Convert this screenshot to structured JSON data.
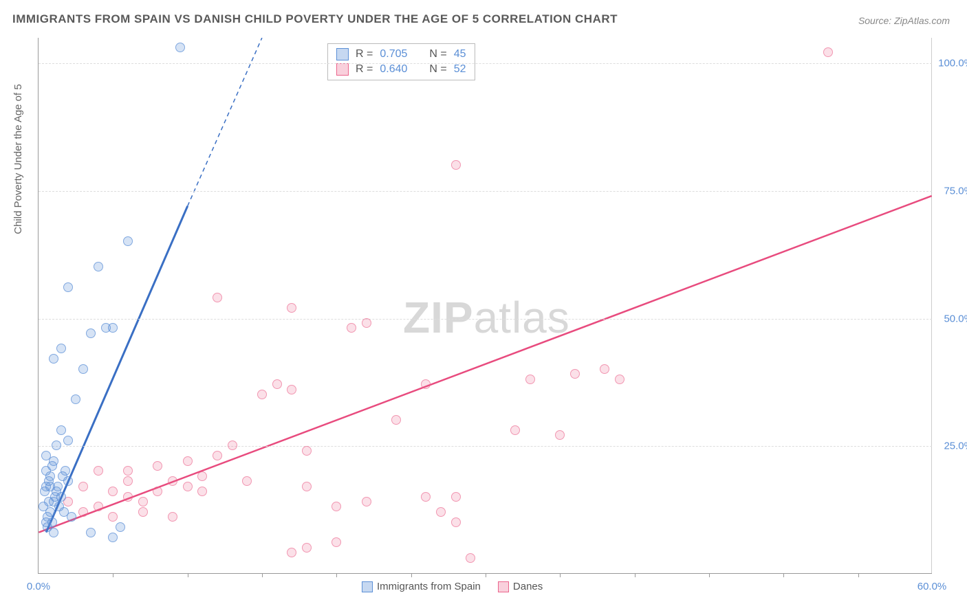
{
  "title": "IMMIGRANTS FROM SPAIN VS DANISH CHILD POVERTY UNDER THE AGE OF 5 CORRELATION CHART",
  "source_label": "Source: ",
  "source_value": "ZipAtlas.com",
  "axis": {
    "y_title": "Child Poverty Under the Age of 5",
    "x_min": 0,
    "x_max": 60,
    "y_min": 0,
    "y_max": 105,
    "y_ticks": [
      25,
      50,
      75,
      100
    ],
    "y_tick_labels": [
      "25.0%",
      "50.0%",
      "75.0%",
      "100.0%"
    ],
    "x_label_left": "0.0%",
    "x_label_right": "60.0%",
    "x_minor_ticks": [
      5,
      10,
      15,
      20,
      25,
      30,
      35,
      40,
      45,
      50,
      55
    ]
  },
  "colors": {
    "blue_fill": "rgba(91,143,214,0.25)",
    "blue_stroke": "#5b8fd6",
    "pink_fill": "rgba(235,100,140,0.2)",
    "pink_stroke": "#eb648c",
    "blue_trend": "#3a6fc4",
    "pink_trend": "#e84b7e",
    "grid": "#dddddd",
    "text": "#666666"
  },
  "marker_size": 14,
  "stats": {
    "series1": {
      "r_label": "R =",
      "r": "0.705",
      "n_label": "N =",
      "n": "45"
    },
    "series2": {
      "r_label": "R =",
      "r": "0.640",
      "n_label": "N =",
      "n": "52"
    }
  },
  "legend": {
    "series1": "Immigrants from Spain",
    "series2": "Danes"
  },
  "watermark": {
    "part1": "ZIP",
    "part2": "atlas"
  },
  "trend_lines": {
    "blue_solid": {
      "x1": 0.5,
      "y1": 8,
      "x2": 10,
      "y2": 72
    },
    "blue_dashed": {
      "x1": 10,
      "y1": 72,
      "x2": 15,
      "y2": 105
    },
    "pink": {
      "x1": 0,
      "y1": 8,
      "x2": 60,
      "y2": 74
    }
  },
  "points_blue": [
    [
      0.5,
      10
    ],
    [
      0.8,
      12
    ],
    [
      1.0,
      14
    ],
    [
      1.2,
      16
    ],
    [
      0.7,
      18
    ],
    [
      1.5,
      15
    ],
    [
      0.5,
      20
    ],
    [
      1.0,
      22
    ],
    [
      1.8,
      20
    ],
    [
      0.3,
      13
    ],
    [
      0.6,
      11
    ],
    [
      1.3,
      17
    ],
    [
      1.6,
      19
    ],
    [
      0.9,
      21
    ],
    [
      2.0,
      18
    ],
    [
      2.0,
      26
    ],
    [
      1.5,
      28
    ],
    [
      2.5,
      34
    ],
    [
      3.0,
      40
    ],
    [
      1.0,
      42
    ],
    [
      3.5,
      47
    ],
    [
      4.5,
      48
    ],
    [
      5.0,
      48
    ],
    [
      2.0,
      56
    ],
    [
      4.0,
      60
    ],
    [
      6.0,
      65
    ],
    [
      1.5,
      44
    ],
    [
      9.5,
      103
    ],
    [
      3.5,
      8
    ],
    [
      5.0,
      7
    ],
    [
      1.0,
      8
    ],
    [
      5.5,
      9
    ],
    [
      0.5,
      17
    ],
    [
      0.8,
      19
    ],
    [
      1.1,
      15
    ],
    [
      0.4,
      16
    ],
    [
      0.7,
      14
    ],
    [
      1.4,
      13
    ],
    [
      0.6,
      9
    ],
    [
      0.9,
      10
    ],
    [
      1.7,
      12
    ],
    [
      2.2,
      11
    ],
    [
      0.5,
      23
    ],
    [
      1.2,
      25
    ],
    [
      0.8,
      17
    ]
  ],
  "points_pink": [
    [
      2,
      14
    ],
    [
      3,
      17
    ],
    [
      4,
      13
    ],
    [
      5,
      16
    ],
    [
      6,
      15
    ],
    [
      7,
      14
    ],
    [
      8,
      21
    ],
    [
      9,
      18
    ],
    [
      10,
      22
    ],
    [
      11,
      16
    ],
    [
      4,
      20
    ],
    [
      6,
      18
    ],
    [
      8,
      16
    ],
    [
      3,
      12
    ],
    [
      5,
      11
    ],
    [
      12,
      23
    ],
    [
      13,
      25
    ],
    [
      18,
      17
    ],
    [
      20,
      13
    ],
    [
      22,
      14
    ],
    [
      26,
      15
    ],
    [
      27,
      12
    ],
    [
      28,
      15
    ],
    [
      15,
      35
    ],
    [
      16,
      37
    ],
    [
      17,
      36
    ],
    [
      18,
      24
    ],
    [
      21,
      48
    ],
    [
      22,
      49
    ],
    [
      24,
      30
    ],
    [
      26,
      37
    ],
    [
      28,
      10
    ],
    [
      29,
      3
    ],
    [
      17,
      4
    ],
    [
      18,
      5
    ],
    [
      20,
      6
    ],
    [
      32,
      28
    ],
    [
      33,
      38
    ],
    [
      35,
      27
    ],
    [
      36,
      39
    ],
    [
      38,
      40
    ],
    [
      39,
      38
    ],
    [
      12,
      54
    ],
    [
      28,
      80
    ],
    [
      53,
      102
    ],
    [
      17,
      52
    ],
    [
      10,
      17
    ],
    [
      11,
      19
    ],
    [
      6,
      20
    ],
    [
      7,
      12
    ],
    [
      9,
      11
    ],
    [
      14,
      18
    ]
  ]
}
